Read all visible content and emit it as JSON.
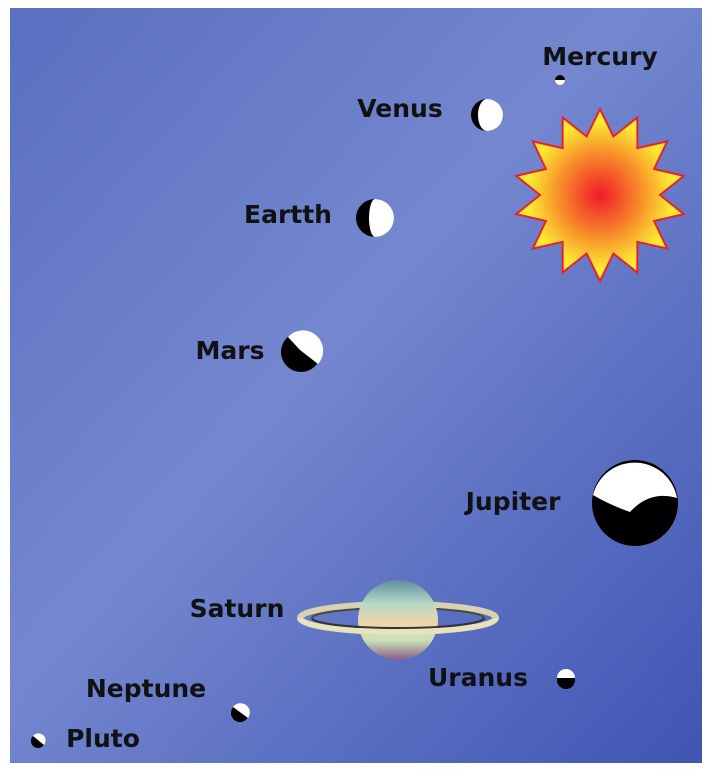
{
  "planets": [
    {
      "label": "Mercury"
    },
    {
      "label": "Venus"
    },
    {
      "label": "Eartth"
    },
    {
      "label": "Mars"
    },
    {
      "label": "Jupiter"
    },
    {
      "label": "Saturn"
    },
    {
      "label": "Uranus"
    },
    {
      "label": "Neptune"
    },
    {
      "label": "Pluto"
    }
  ]
}
